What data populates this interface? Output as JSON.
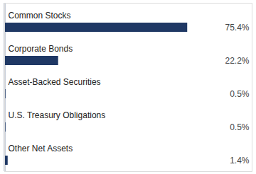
{
  "chart_data": {
    "type": "bar",
    "orientation": "horizontal",
    "categories": [
      "Common Stocks",
      "Corporate Bonds",
      "Asset-Backed Securities",
      "U.S. Treasury Obligations",
      "Other Net Assets"
    ],
    "values": [
      75.4,
      22.2,
      0.5,
      0.5,
      1.4
    ],
    "value_labels": [
      "75.4%",
      "22.2%",
      "0.5%",
      "0.5%",
      "1.4%"
    ],
    "data_labels": true,
    "color": "#1f3864",
    "xlim": [
      0,
      102
    ],
    "tick_labels": false,
    "grid": false
  }
}
